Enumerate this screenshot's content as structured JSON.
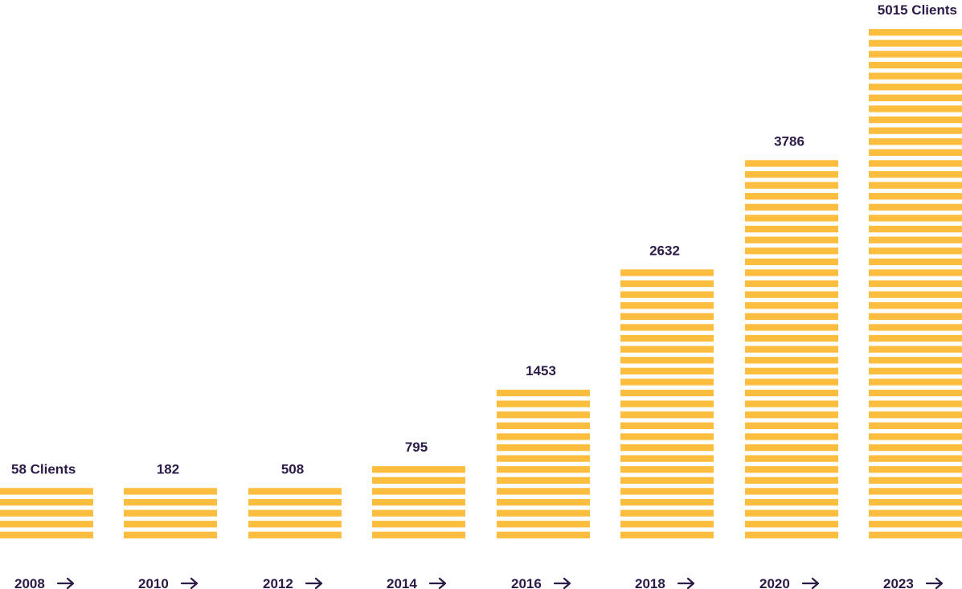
{
  "colors": {
    "bar": "#FDBD3E",
    "text": "#2C1A47",
    "arrow": "#2C1A47",
    "background": "#FFFFFF"
  },
  "icons": {
    "year_arrow": "arrow-right-icon"
  },
  "chart_data": {
    "type": "bar",
    "style": "stacked-stripe bars",
    "categories": [
      "2008",
      "2010",
      "2012",
      "2014",
      "2016",
      "2018",
      "2020",
      "2023"
    ],
    "values": [
      58,
      182,
      508,
      795,
      1453,
      2632,
      3786,
      5015
    ],
    "data_labels": [
      "58 Clients",
      "182",
      "508",
      "795",
      "1453",
      "2632",
      "3786",
      "5015 Clients"
    ],
    "title": "",
    "xlabel": "",
    "ylabel": "",
    "grid": false,
    "legend": "none"
  }
}
